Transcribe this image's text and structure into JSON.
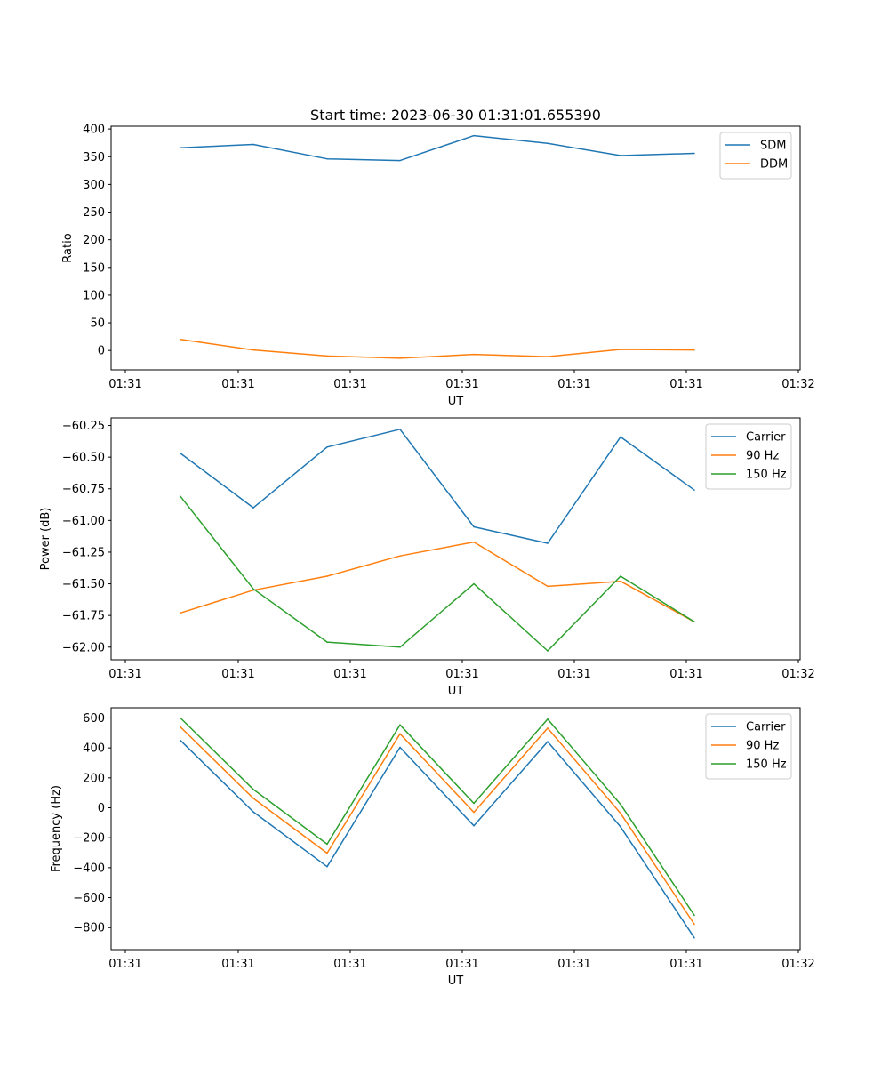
{
  "chart_data": [
    {
      "type": "line",
      "title": "Start time: 2023-06-30 01:31:01.655390",
      "xlabel": "UT",
      "ylabel": "Ratio",
      "x_tick_labels": [
        "01:31",
        "01:31",
        "01:31",
        "01:31",
        "01:31",
        "01:31",
        "01:32"
      ],
      "y_ticks": [
        0,
        50,
        100,
        150,
        200,
        250,
        300,
        350,
        400
      ],
      "ylim": [
        -35,
        405
      ],
      "grid": false,
      "legend_position": "top-right",
      "series": [
        {
          "name": "SDM",
          "color": "#1f77b4",
          "values": [
            366,
            372,
            346,
            343,
            388,
            374,
            352,
            356
          ]
        },
        {
          "name": "DDM",
          "color": "#ff7f0e",
          "values": [
            20,
            1,
            -10,
            -14,
            -7,
            -11,
            2,
            1
          ]
        }
      ]
    },
    {
      "type": "line",
      "title": "",
      "xlabel": "UT",
      "ylabel": "Power (dB)",
      "x_tick_labels": [
        "01:31",
        "01:31",
        "01:31",
        "01:31",
        "01:31",
        "01:31",
        "01:32"
      ],
      "y_ticks": [
        -60.25,
        -60.5,
        -60.75,
        -61.0,
        -61.25,
        -61.5,
        -61.75,
        -62.0
      ],
      "ylim": [
        -62.1,
        -60.19
      ],
      "grid": false,
      "legend_position": "top-right",
      "series": [
        {
          "name": "Carrier",
          "color": "#1f77b4",
          "values": [
            -60.47,
            -60.9,
            -60.42,
            -60.28,
            -61.05,
            -61.18,
            -60.34,
            -60.76
          ]
        },
        {
          "name": "90 Hz",
          "color": "#ff7f0e",
          "values": [
            -61.73,
            -61.55,
            -61.44,
            -61.28,
            -61.17,
            -61.52,
            -61.48,
            -61.8
          ]
        },
        {
          "name": "150 Hz",
          "color": "#2ca02c",
          "values": [
            -60.81,
            -61.54,
            -61.96,
            -62.0,
            -61.5,
            -62.03,
            -61.44,
            -61.8
          ]
        }
      ]
    },
    {
      "type": "line",
      "title": "",
      "xlabel": "UT",
      "ylabel": "Frequency (Hz)",
      "x_tick_labels": [
        "01:31",
        "01:31",
        "01:31",
        "01:31",
        "01:31",
        "01:31",
        "01:32"
      ],
      "y_ticks": [
        600,
        400,
        200,
        0,
        -200,
        -400,
        -600,
        -800
      ],
      "ylim": [
        -947,
        668
      ],
      "grid": false,
      "legend_position": "top-right",
      "series": [
        {
          "name": "Carrier",
          "color": "#1f77b4",
          "values": [
            450,
            -27,
            -393,
            404,
            -120,
            442,
            -127,
            -868
          ]
        },
        {
          "name": "90 Hz",
          "color": "#ff7f0e",
          "values": [
            540,
            63,
            -303,
            494,
            -30,
            532,
            -37,
            -778
          ]
        },
        {
          "name": "150 Hz",
          "color": "#2ca02c",
          "values": [
            600,
            123,
            -243,
            554,
            30,
            592,
            23,
            -718
          ]
        }
      ]
    }
  ]
}
